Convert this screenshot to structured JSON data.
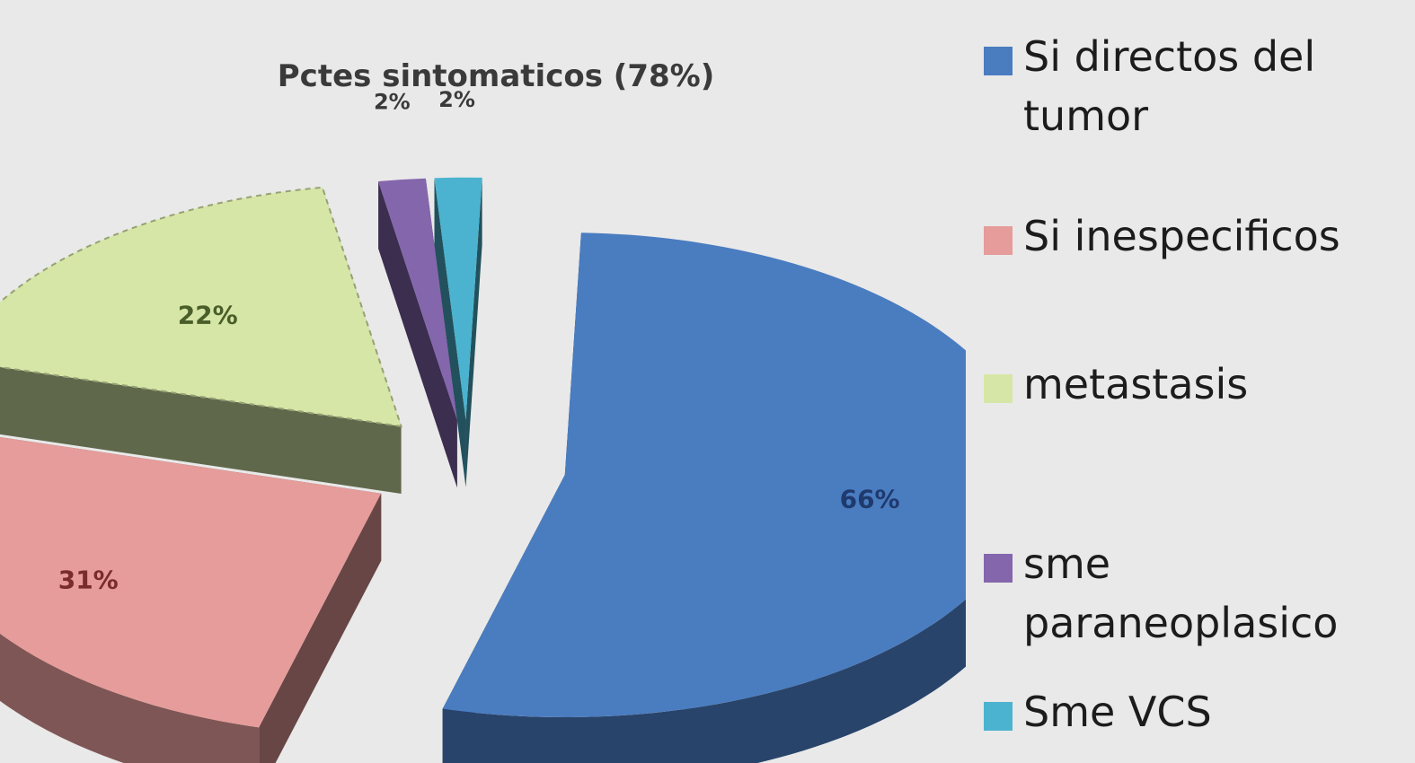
{
  "chart_data": {
    "type": "pie",
    "title": "Pctes sintomaticos (78%)",
    "categories": [
      "Si directos del tumor",
      "Si inespecificos",
      "metastasis",
      "sme paraneoplasico",
      "Sme VCS"
    ],
    "values": [
      66,
      31,
      22,
      2,
      2
    ],
    "labels": [
      "66%",
      "31%",
      "22%",
      "2%",
      "2%"
    ],
    "colors": [
      "#4a7cc0",
      "#e59c9a",
      "#d6e6a6",
      "#8466ad",
      "#4bb3cf"
    ],
    "label_colors": [
      "#1f3a6e",
      "#7a2b2b",
      "#4a5e2a",
      "#3a3a3a",
      "#3a3a3a"
    ],
    "style": "3d-exploded",
    "legend_position": "right"
  }
}
